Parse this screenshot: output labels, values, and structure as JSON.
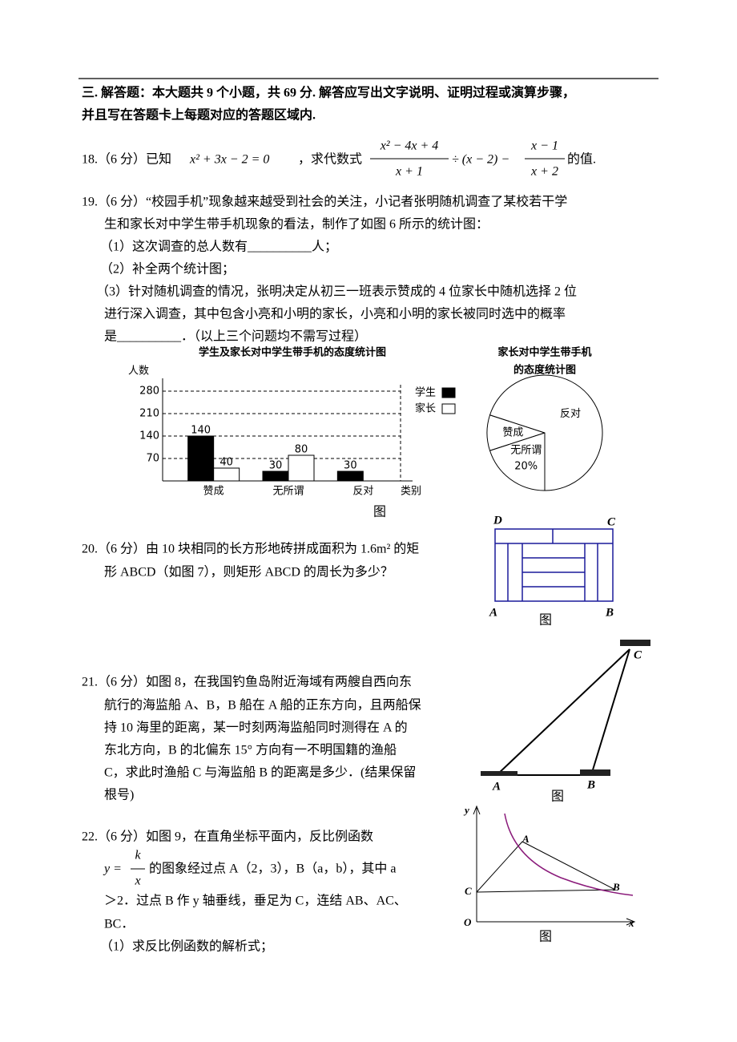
{
  "section": {
    "heading_lines": [
      "三. 解答题：本大题共 9 个小题，共 69 分. 解答应写出文字说明、证明过程或演算步骤，",
      "并且写在答题卡上每题对应的答题区域内."
    ]
  },
  "q18": {
    "intro": "18.（6 分）已知",
    "equation": "x² + 3x − 2 = 0",
    "text_middle": "，求代数式",
    "fraction_1": {
      "numerator": "x² − 4x + 4",
      "denominator": "x + 1"
    },
    "operator": "÷ (x − 2) −",
    "fraction_2": {
      "numerator": "x − 1",
      "denominator": "x + 2"
    },
    "text_after": "的值."
  },
  "q19": {
    "lines": [
      "19.（6 分）“校园手机”现象越来越受到社会的关注，小记者张明随机调查了某校若干学",
      "生和家长对中学生带手机现象的看法，制作了如图 6 所示的统计图：",
      "（1）这次调查的总人数有__________人；",
      "（2）补全两个统计图；",
      "（3）针对随机调查的情况，张明决定从初三一班表示赞成的 4 位家长中随机选择 2 位",
      "进行深入调查，其中包含小亮和小明的家长，小亮和小明的家长被同时选中的概率",
      "是__________．（以上三个问题均不需写过程）"
    ]
  },
  "chart_data": [
    {
      "type": "bar",
      "title": "学生及家长对中学生带手机的态度统计图",
      "y_label": "人数",
      "x_label": "类别",
      "categories": [
        "赞成",
        "无所谓",
        "反对"
      ],
      "series": [
        {
          "name": "学生",
          "color": "#000000",
          "values": [
            140,
            30,
            30
          ]
        },
        {
          "name": "家长",
          "color": "#ffffff",
          "values": [
            40,
            80,
            null
          ]
        }
      ],
      "ylim": [
        0,
        320
      ],
      "yticks": [
        70,
        140,
        210,
        280
      ],
      "grid": true,
      "legend": "right",
      "caption": "图"
    },
    {
      "type": "pie",
      "title_lines": [
        "家长对中学生带手机",
        "的态度统计图"
      ],
      "categories": [
        "赞成",
        "无所谓",
        "反对"
      ],
      "values": [
        10,
        20,
        70
      ],
      "value_labels": [
        null,
        "20%",
        null
      ],
      "color": "#ffffff"
    }
  ],
  "q20": {
    "lines": [
      "20.（6 分）由 10 块相同的长方形地砖拼成面积为 1.6m² 的矩",
      "形 ABCD（如图 7），则矩形 ABCD 的周长为多少？"
    ],
    "figure": {
      "labels": [
        "D",
        "C",
        "A",
        "B"
      ],
      "caption": "图"
    }
  },
  "q21": {
    "lines": [
      "21.（6 分）如图 8，在我国钓鱼岛附近海域有两艘自西向东",
      "航行的海监船 A、B，B 船在 A 船的正东方向，且两船保",
      "持 10 海里的距离，某一时刻两海监船同时测得在 A 的",
      "东北方向，B 的北偏东 15° 方向有一不明国籍的渔船",
      "C，求此时渔船 C 与海监船 B 的距离是多少．(结果保留",
      "根号)"
    ],
    "figure": {
      "labels": [
        "C",
        "A",
        "B"
      ],
      "caption": "图"
    }
  },
  "q22": {
    "line_1": "22.（6 分）如图 9，在直角坐标平面内，反比例函数",
    "formula": {
      "lhs": "y =",
      "numerator": "k",
      "denominator": "x"
    },
    "line_2_rest": "的图象经过点 A（2，3），B（a，b），其中 a",
    "lines": [
      "＞2．过点 B 作 y 轴垂线，垂足为 C，连结 AB、AC、",
      "BC．",
      "（1）求反比例函数的解析式；"
    ],
    "figure": {
      "labels": [
        "y",
        "x",
        "O",
        "A",
        "B",
        "C"
      ],
      "caption": "图"
    }
  }
}
